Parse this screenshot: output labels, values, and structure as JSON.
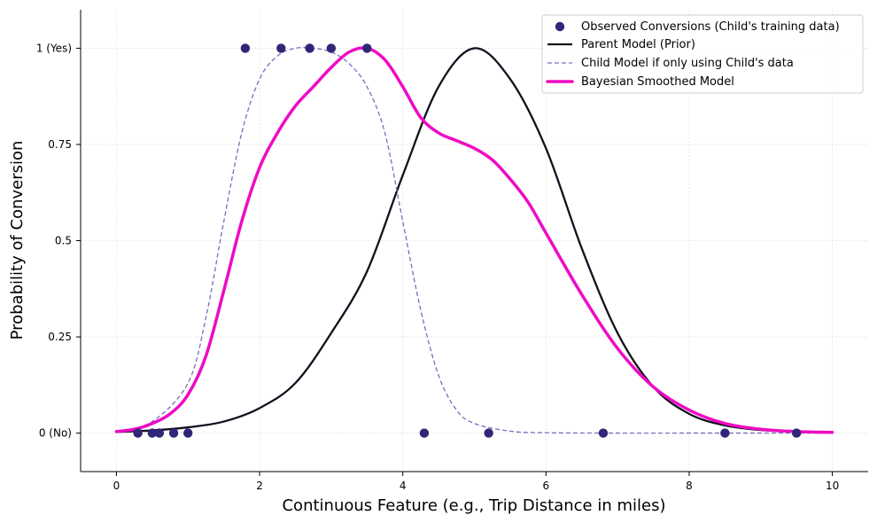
{
  "chart_data": {
    "type": "line",
    "xlabel": "Continuous Feature (e.g., Trip Distance in miles)",
    "ylabel": "Probability of Conversion",
    "xlim": [
      -0.5,
      10.5
    ],
    "ylim": [
      -0.1,
      1.1
    ],
    "x_ticks": [
      0,
      2,
      4,
      6,
      8,
      10
    ],
    "y_ticks": [
      {
        "value": 0,
        "label": "0 (No)"
      },
      {
        "value": 0.25,
        "label": "0.25"
      },
      {
        "value": 0.5,
        "label": "0.5"
      },
      {
        "value": 0.75,
        "label": "0.75"
      },
      {
        "value": 1,
        "label": "1 (Yes)"
      }
    ],
    "grid": true,
    "legend_position": "top-right",
    "scatter": {
      "name": "Observed Conversions (Child's training data)",
      "color": "#2e2676",
      "points": [
        {
          "x": 0.3,
          "y": 0
        },
        {
          "x": 0.5,
          "y": 0
        },
        {
          "x": 0.6,
          "y": 0
        },
        {
          "x": 0.8,
          "y": 0
        },
        {
          "x": 1.0,
          "y": 0
        },
        {
          "x": 1.8,
          "y": 1
        },
        {
          "x": 2.3,
          "y": 1
        },
        {
          "x": 2.7,
          "y": 1
        },
        {
          "x": 3.0,
          "y": 1
        },
        {
          "x": 3.5,
          "y": 1
        },
        {
          "x": 4.3,
          "y": 0
        },
        {
          "x": 5.2,
          "y": 0
        },
        {
          "x": 6.8,
          "y": 0
        },
        {
          "x": 8.5,
          "y": 0
        },
        {
          "x": 9.5,
          "y": 0
        }
      ]
    },
    "series": [
      {
        "name": "Parent Model (Prior)",
        "color": "#12101e",
        "style": "solid",
        "x": [
          0,
          0.5,
          1,
          1.5,
          2,
          2.5,
          3,
          3.5,
          4,
          4.5,
          5,
          5.5,
          6,
          6.5,
          7,
          7.5,
          8,
          8.5,
          9,
          9.5,
          10
        ],
        "y": [
          0.003,
          0.007,
          0.015,
          0.03,
          0.065,
          0.13,
          0.26,
          0.42,
          0.67,
          0.9,
          1.0,
          0.92,
          0.74,
          0.48,
          0.26,
          0.12,
          0.05,
          0.02,
          0.008,
          0.004,
          0.002
        ]
      },
      {
        "name": "Child Model if only using Child's data",
        "color": "#7a6cc0",
        "style": "dashed",
        "x": [
          0,
          0.5,
          1,
          1.25,
          1.5,
          1.75,
          2,
          2.25,
          2.5,
          2.75,
          3,
          3.25,
          3.5,
          3.75,
          4,
          4.25,
          4.5,
          4.75,
          5,
          5.5,
          6,
          7,
          8,
          9,
          10
        ],
        "y": [
          0.004,
          0.03,
          0.13,
          0.3,
          0.55,
          0.78,
          0.92,
          0.98,
          1.0,
          1.0,
          0.99,
          0.96,
          0.9,
          0.78,
          0.55,
          0.32,
          0.15,
          0.06,
          0.025,
          0.005,
          0.001,
          0.0,
          0.0,
          0.0,
          0.0
        ]
      },
      {
        "name": "Bayesian Smoothed Model",
        "color": "#ee0bc5",
        "style": "solid-thick",
        "x": [
          0,
          0.25,
          0.5,
          0.75,
          1,
          1.25,
          1.5,
          1.75,
          2,
          2.25,
          2.5,
          2.75,
          3,
          3.25,
          3.5,
          3.75,
          4,
          4.25,
          4.5,
          4.75,
          5,
          5.25,
          5.5,
          5.75,
          6,
          6.5,
          7,
          7.5,
          8,
          8.5,
          9,
          9.5,
          10
        ],
        "y": [
          0.004,
          0.01,
          0.025,
          0.05,
          0.1,
          0.2,
          0.37,
          0.55,
          0.69,
          0.78,
          0.85,
          0.9,
          0.95,
          0.99,
          1.0,
          0.97,
          0.9,
          0.82,
          0.78,
          0.76,
          0.74,
          0.71,
          0.66,
          0.6,
          0.52,
          0.36,
          0.22,
          0.12,
          0.06,
          0.025,
          0.01,
          0.004,
          0.002
        ]
      }
    ]
  }
}
